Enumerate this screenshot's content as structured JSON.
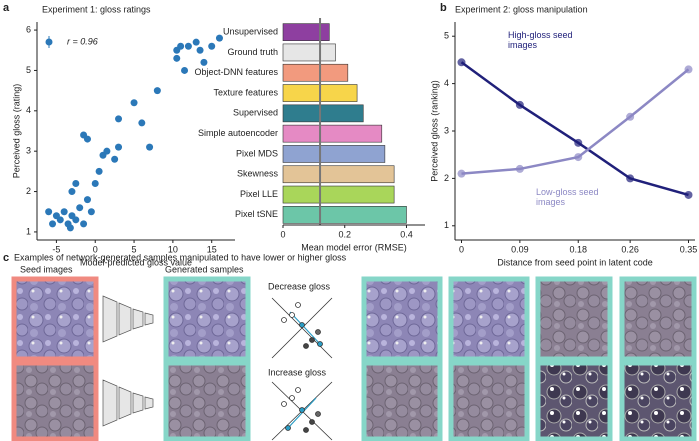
{
  "panel_labels": [
    "a",
    "b",
    "c"
  ],
  "chart_data": [
    {
      "type": "scatter",
      "title": "Experiment 1: gloss ratings",
      "x_label": "Model-predicted gloss value",
      "y_label": "Perceived gloss (rating)",
      "annotation": "r = 0.96",
      "color": "#2b78b8",
      "x": [
        -6,
        -5.5,
        -5,
        -4.5,
        -4,
        -3.5,
        -3,
        -3.2,
        -2.5,
        -2,
        -1.5,
        -2.5,
        -3,
        -1,
        -0.5,
        0,
        0.5,
        -1.5,
        -1,
        1,
        1.5,
        3,
        3,
        2.5,
        6,
        7,
        5,
        8,
        10.5,
        11,
        11.5,
        12,
        13,
        13.5,
        14,
        15,
        16,
        10.5
      ],
      "y": [
        1.5,
        1.2,
        1.4,
        1.3,
        1.5,
        1.2,
        1.4,
        1.1,
        1.3,
        1.6,
        1.2,
        2.2,
        2.0,
        1.8,
        1.5,
        2.2,
        2.5,
        3.4,
        3.3,
        2.9,
        3.0,
        3.8,
        3.1,
        2.8,
        3.7,
        3.1,
        4.2,
        4.5,
        5.3,
        5.6,
        5.0,
        5.6,
        5.7,
        5.5,
        5.2,
        5.6,
        5.8,
        5.5
      ],
      "xlim": [
        -7.5,
        18
      ],
      "ylim": [
        0.8,
        6.2
      ],
      "xticks": [
        -5,
        0,
        5,
        10,
        15
      ],
      "yticks": [
        1,
        2,
        3,
        4,
        5,
        6
      ]
    },
    {
      "type": "bar",
      "orientation": "horizontal",
      "x_label": "Mean model error (RMSE)",
      "categories": [
        "Unsupervised",
        "Ground truth",
        "Object-DNN features",
        "Texture features",
        "Supervised",
        "Simple autoencoder",
        "Pixel MDS",
        "Skewness",
        "Pixel LLE",
        "Pixel tSNE"
      ],
      "values": [
        0.15,
        0.17,
        0.21,
        0.24,
        0.26,
        0.32,
        0.33,
        0.36,
        0.36,
        0.4
      ],
      "colors": [
        "#8e3fa0",
        "#e6e6e6",
        "#f29a7e",
        "#f7d54a",
        "#2f7d8e",
        "#e58ac4",
        "#8fa3d1",
        "#e3c497",
        "#a9d65a",
        "#6cc6a8"
      ],
      "reference_line": 0.12,
      "xlim": [
        0,
        0.46
      ],
      "xticks": [
        0,
        0.2,
        0.4
      ]
    },
    {
      "type": "line",
      "title": "Experiment 2: gloss manipulation",
      "x_label": "Distance from seed point in latent code",
      "y_label": "Perceived gloss (ranking)",
      "x": [
        0,
        0.09,
        0.18,
        0.26,
        0.35
      ],
      "series": [
        {
          "name": "High-gloss seed images",
          "color": "#20207a",
          "values": [
            4.45,
            3.55,
            2.75,
            2.0,
            1.65
          ]
        },
        {
          "name": "Low-gloss seed images",
          "color": "#8c88c4",
          "values": [
            2.1,
            2.2,
            2.45,
            3.3,
            4.3
          ]
        }
      ],
      "xlim": [
        -0.01,
        0.36
      ],
      "ylim": [
        0.7,
        5.3
      ],
      "xticks": [
        0,
        0.09,
        0.18,
        0.26,
        0.35
      ],
      "yticks": [
        1,
        2,
        3,
        4,
        5
      ]
    }
  ],
  "panel_c": {
    "caption": "Examples of network-generated samples manipulated to have lower or higher gloss",
    "seed_label": "Seed images",
    "generated_label": "Generated samples",
    "decrease_label": "Decrease gloss",
    "increase_label": "Increase gloss"
  }
}
